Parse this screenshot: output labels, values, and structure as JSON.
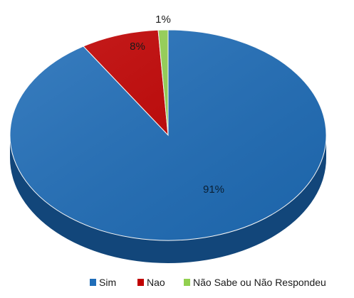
{
  "chart_data": {
    "type": "pie",
    "title": "",
    "categories": [
      "Sim",
      "Nao",
      "Não Sabe ou Não Respondeu"
    ],
    "values": [
      91,
      8,
      1
    ],
    "data_labels": [
      "91%",
      "8%",
      "1%"
    ],
    "colors": [
      "#1f6db8",
      "#c00000",
      "#92d050"
    ],
    "side_colors": [
      "#12467a",
      "#7a0000",
      "#5a8a2a"
    ],
    "legend_position": "bottom-right",
    "three_d": true
  }
}
